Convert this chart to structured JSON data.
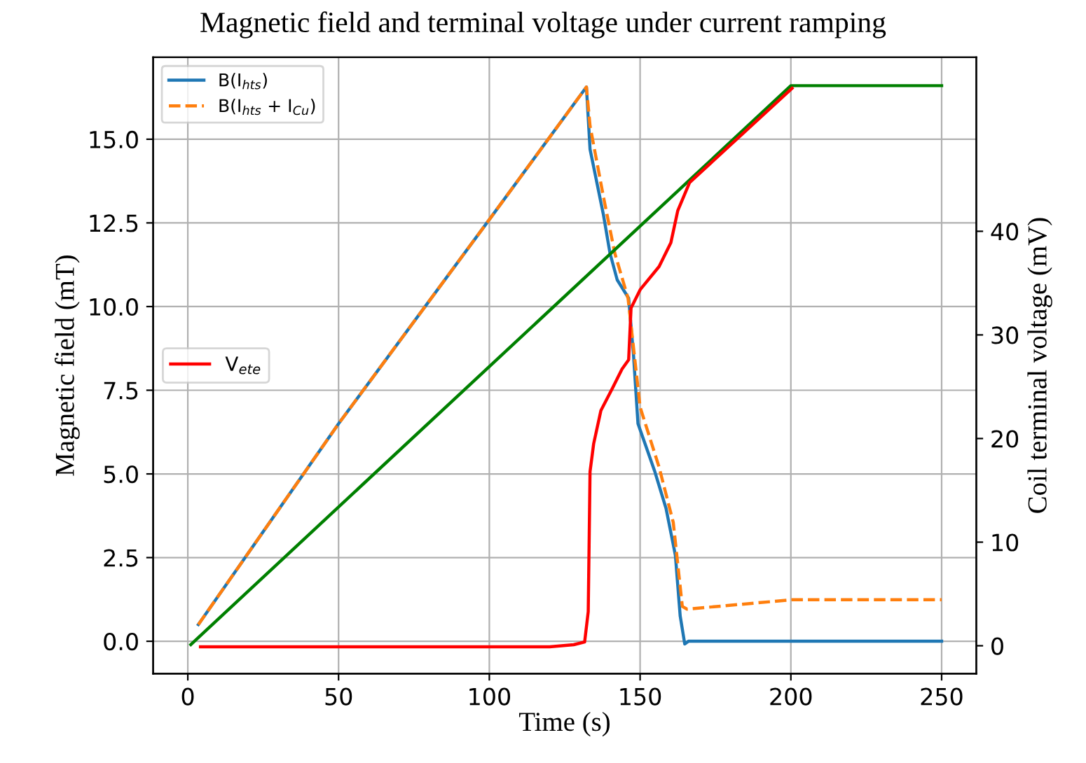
{
  "chart_data": {
    "type": "line",
    "title": "Magnetic field and terminal voltage under current ramping",
    "xlabel": "Time (s)",
    "ylabel": "Magnetic field (mT)",
    "y2label": "Coil terminal voltage (mV)",
    "xlim": [
      -11.5,
      261.5
    ],
    "xticks": [
      0,
      50,
      100,
      150,
      200,
      250
    ],
    "ylim": [
      -0.97,
      17.45
    ],
    "yticks": [
      {
        "value": 0,
        "label": "0.0"
      },
      {
        "value": 2.5,
        "label": "2.5"
      },
      {
        "value": 5,
        "label": "5.0"
      },
      {
        "value": 7.5,
        "label": "7.5"
      },
      {
        "value": 10,
        "label": "10.0"
      },
      {
        "value": 12.5,
        "label": "12.5"
      },
      {
        "value": 15,
        "label": "15.0"
      }
    ],
    "y2lim": [
      -2.7,
      56.8
    ],
    "y2ticks": [
      0,
      10,
      20,
      30,
      40
    ],
    "grid": true,
    "legend": "top left",
    "series": [
      {
        "name": "B(I$_{hts}$)",
        "color": "#1f77b4",
        "line_style": "solid",
        "x": [
          3.5,
          50,
          100,
          132.2,
          133.4,
          137.8,
          140,
          142.4,
          146.2,
          147.8,
          149.3,
          154.8,
          158.6,
          161.7,
          163.3,
          164.8,
          166,
          250
        ],
        "values": [
          0.5,
          6.5,
          12.6,
          16.56,
          14.7,
          12.76,
          11.6,
          10.8,
          10.25,
          8.57,
          6.5,
          5.09,
          3.97,
          2.57,
          0.75,
          -0.08,
          0,
          0
        ]
      },
      {
        "name": "B(I$_{hts}$ + I$_{Cu}$)",
        "color": "#ff7f0e",
        "line_style": "dashed",
        "x": [
          3.5,
          50,
          100,
          132.2,
          133.4,
          137.8,
          141.6,
          146,
          150,
          156.3,
          161,
          164,
          165.6,
          200.4,
          250
        ],
        "values": [
          0.5,
          6.5,
          12.6,
          16.56,
          15.4,
          13.3,
          11.6,
          10.25,
          7.0,
          5.2,
          3.55,
          1.04,
          0.96,
          1.24,
          1.24
        ]
      },
      {
        "color": "#008000",
        "line_style": "solid",
        "x": [
          1,
          200,
          250
        ],
        "values": [
          -0.1,
          16.6,
          16.6
        ]
      },
      {
        "name": "V$_{ete}$",
        "color": "#ff0000",
        "line_style": "solid",
        "axis": "y2",
        "x": [
          4.2,
          120,
          128,
          131.6,
          132.8,
          133.4,
          134.6,
          137,
          140.9,
          144,
          146.2,
          147,
          150.1,
          156.3,
          160.2,
          162.5,
          166.4,
          200.4
        ],
        "values": [
          -0.1,
          -0.1,
          0.1,
          0.36,
          3.3,
          16.8,
          19.5,
          22.7,
          24.9,
          26.7,
          27.6,
          32.6,
          34.4,
          36.6,
          38.9,
          42.0,
          44.7,
          53.8
        ]
      }
    ]
  }
}
